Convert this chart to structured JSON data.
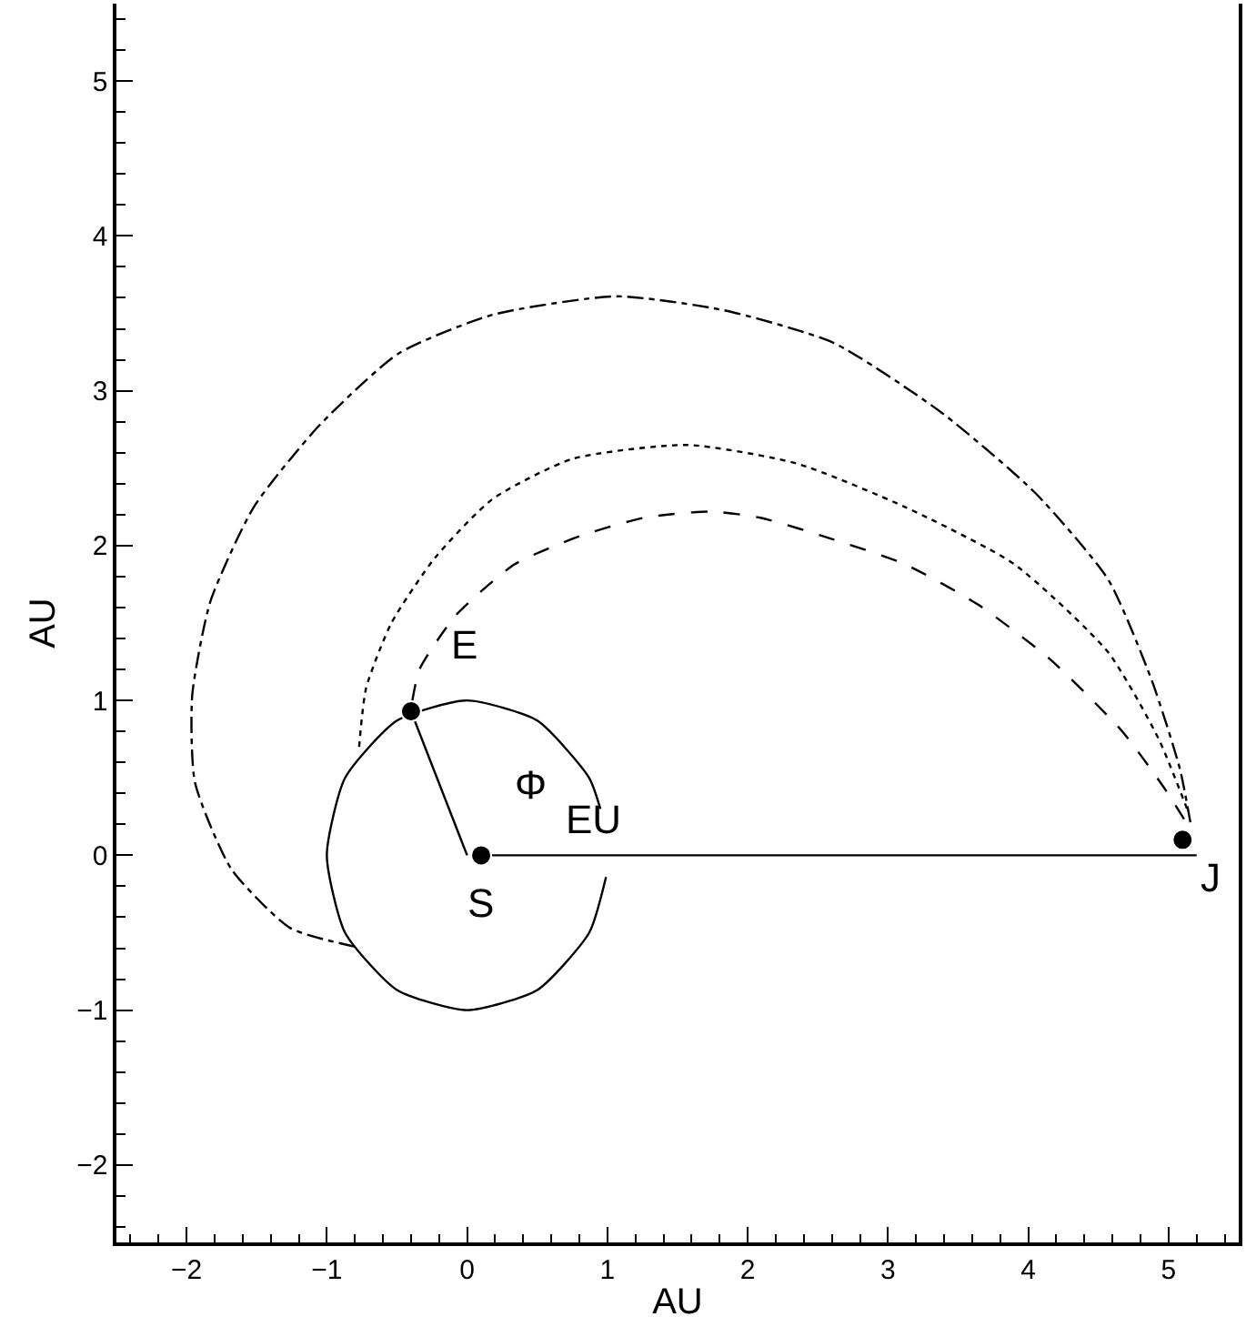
{
  "chart_data": {
    "type": "line",
    "xlabel": "AU",
    "ylabel": "AU",
    "xlim": [
      -2.5,
      5.5
    ],
    "ylim": [
      -2.5,
      5.5
    ],
    "xticks": [
      -2,
      -1,
      0,
      1,
      2,
      3,
      4,
      5
    ],
    "yticks": [
      -2,
      -1,
      0,
      1,
      2,
      3,
      4,
      5
    ],
    "series": [
      {
        "color": "#000000",
        "line_style": "dashed",
        "marker": "none",
        "x": [
          -0.39,
          -0.34,
          -0.08,
          0.34,
          0.8,
          1.26,
          1.73,
          2.09,
          2.61,
          3.12,
          3.64,
          4.15,
          4.67,
          4.98,
          5.14
        ],
        "values": [
          1.0,
          1.2,
          1.55,
          1.88,
          2.06,
          2.18,
          2.22,
          2.18,
          2.04,
          1.88,
          1.62,
          1.27,
          0.8,
          0.42,
          0.19
        ]
      },
      {
        "color": "#000000",
        "line_style": "dotted",
        "marker": "none",
        "x": [
          -0.77,
          -0.72,
          -0.54,
          -0.23,
          0.18,
          0.75,
          1.57,
          2.35,
          3.12,
          3.9,
          4.57,
          4.93,
          5.14
        ],
        "values": [
          0.7,
          1.08,
          1.5,
          1.92,
          2.3,
          2.56,
          2.65,
          2.53,
          2.25,
          1.88,
          1.31,
          0.75,
          0.28
        ]
      },
      {
        "color": "#000000",
        "line_style": "dashdot",
        "marker": "none",
        "x": [
          -0.8,
          -1.26,
          -1.68,
          -1.94,
          -1.96,
          -1.83,
          -1.52,
          -1.06,
          -0.49,
          0.18,
          1.06,
          1.83,
          2.61,
          3.38,
          4.05,
          4.57,
          4.88,
          5.08,
          5.16
        ],
        "values": [
          -0.59,
          -0.47,
          -0.09,
          0.47,
          1.03,
          1.64,
          2.25,
          2.77,
          3.24,
          3.49,
          3.61,
          3.52,
          3.31,
          2.86,
          2.34,
          1.78,
          1.13,
          0.56,
          0.19
        ]
      },
      {
        "color": "#000000",
        "line_style": "solid",
        "marker": "none",
        "x": [
          0.95,
          0.87,
          0.5,
          0.0,
          -0.5,
          -0.87,
          -1.0,
          -0.87,
          -0.5,
          0.0,
          0.5,
          0.87,
          0.99
        ],
        "values": [
          0.3,
          0.5,
          0.87,
          1.0,
          0.87,
          0.5,
          0.0,
          -0.5,
          -0.87,
          -1.0,
          -0.87,
          -0.5,
          -0.14
        ]
      },
      {
        "color": "#000000",
        "line_style": "solid",
        "marker": "none",
        "x": [
          0.0,
          -0.4
        ],
        "values": [
          0.0,
          0.93
        ]
      },
      {
        "color": "#000000",
        "line_style": "solid",
        "marker": "none",
        "x": [
          0.1,
          5.2
        ],
        "values": [
          0.0,
          0.0
        ]
      },
      {
        "type": "scatter",
        "color": "#000000",
        "marker": "circle",
        "x": [
          0.1,
          -0.4,
          5.1
        ],
        "values": [
          0.0,
          0.93,
          0.1
        ]
      }
    ],
    "annotations": [
      {
        "text": "E",
        "x": -0.4,
        "y": 0.93
      },
      {
        "text": "S",
        "x": 0.1,
        "y": 0.0
      },
      {
        "text": "EU",
        "x": 0.95,
        "y": 0.3
      },
      {
        "text": "J",
        "x": 5.1,
        "y": 0.1
      },
      "Φ"
    ]
  }
}
